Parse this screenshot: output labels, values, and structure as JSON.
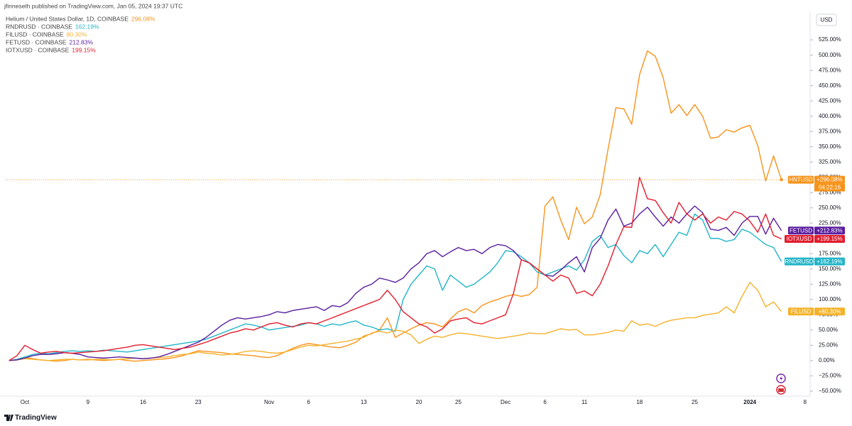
{
  "chart_data": {
    "type": "line",
    "publisher": "jfinneseth published on TradingView.com, Jan 05, 2024 19:37 UTC",
    "watermark": "TradingView",
    "y_axis_unit": "USD",
    "grid": false,
    "categories": [
      null,
      null,
      "Oct",
      null,
      null,
      null,
      null,
      null,
      null,
      null,
      "9",
      null,
      null,
      null,
      null,
      null,
      null,
      "16",
      null,
      null,
      null,
      null,
      null,
      null,
      "23",
      null,
      null,
      null,
      null,
      null,
      null,
      null,
      null,
      "Nov",
      null,
      null,
      null,
      null,
      "6",
      null,
      null,
      null,
      null,
      null,
      null,
      "13",
      null,
      null,
      null,
      null,
      null,
      null,
      "20",
      null,
      null,
      null,
      null,
      "25",
      null,
      null,
      null,
      null,
      null,
      "Dec",
      null,
      null,
      null,
      null,
      "6",
      null,
      null,
      null,
      null,
      "11",
      null,
      null,
      null,
      null,
      null,
      null,
      "18",
      null,
      null,
      null,
      null,
      null,
      null,
      "25",
      null,
      null,
      null,
      null,
      null,
      null,
      "2024",
      null,
      null,
      null,
      null,
      null,
      null,
      "8"
    ],
    "ylim": [
      -56,
      567
    ],
    "yticks": [
      {
        "value": -50,
        "label": "−50.00%"
      },
      {
        "value": -25,
        "label": "−25.00%"
      },
      {
        "value": 0,
        "label": "0.00%"
      },
      {
        "value": 25,
        "label": "25.00%"
      },
      {
        "value": 50,
        "label": "50.00%"
      },
      {
        "value": 75,
        "label": "75.00%"
      },
      {
        "value": 100,
        "label": "100.00%"
      },
      {
        "value": 125,
        "label": "125.00%"
      },
      {
        "value": 150,
        "label": "150.00%"
      },
      {
        "value": 175,
        "label": "175.00%"
      },
      {
        "value": 200,
        "label": "200.00%"
      },
      {
        "value": 225,
        "label": "225.00%"
      },
      {
        "value": 250,
        "label": "250.00%"
      },
      {
        "value": 275,
        "label": "275.00%"
      },
      {
        "value": 300,
        "label": "300.00%"
      },
      {
        "value": 325,
        "label": "325.00%"
      },
      {
        "value": 350,
        "label": "350.00%"
      },
      {
        "value": 375,
        "label": "375.00%"
      },
      {
        "value": 400,
        "label": "400.00%"
      },
      {
        "value": 425,
        "label": "425.00%"
      },
      {
        "value": 450,
        "label": "450.00%"
      },
      {
        "value": 475,
        "label": "475.00%"
      },
      {
        "value": 500,
        "label": "500.00%"
      },
      {
        "value": 525,
        "label": "525.00%"
      }
    ],
    "series": [
      {
        "name": "Helium / United States Dollar, 1D, COINBASE",
        "legend_value": "296.08%",
        "tag": "HNTUSD",
        "tag_value": "+296.08%",
        "countdown": "04:22:16",
        "color": "#f7931a",
        "values": [
          0,
          1,
          5,
          3,
          1,
          0,
          -1,
          0,
          2,
          1,
          2,
          1,
          0,
          1,
          2,
          0,
          -1,
          0,
          1,
          2,
          3,
          5,
          8,
          12,
          16,
          15,
          14,
          13,
          11,
          10,
          9,
          8,
          6,
          5,
          8,
          14,
          20,
          25,
          28,
          26,
          24,
          22,
          21,
          25,
          30,
          40,
          44,
          50,
          70,
          38,
          45,
          52,
          58,
          62,
          60,
          55,
          68,
          80,
          85,
          78,
          90,
          96,
          100,
          105,
          108,
          105,
          108,
          120,
          253,
          268,
          230,
          198,
          251,
          224,
          235,
          271,
          346,
          414,
          412,
          387,
          468,
          507,
          498,
          463,
          405,
          419,
          401,
          419,
          400,
          364,
          366,
          378,
          374,
          381,
          385,
          352,
          294,
          335,
          296.08,
          null,
          null,
          null
        ]
      },
      {
        "name": "RNDRUSD · COINBASE",
        "legend_value": "162.19%",
        "tag": "RNDRUSD",
        "tag_value": "+162.19%",
        "color": "#22b5c8",
        "values": [
          0,
          2,
          6,
          10,
          12,
          11,
          13,
          15,
          16,
          15,
          16,
          15,
          17,
          16,
          15,
          14,
          16,
          18,
          20,
          22,
          24,
          26,
          28,
          30,
          32,
          35,
          40,
          45,
          50,
          55,
          60,
          58,
          55,
          50,
          52,
          54,
          56,
          58,
          62,
          60,
          56,
          60,
          58,
          62,
          65,
          58,
          55,
          50,
          52,
          48,
          100,
          125,
          140,
          155,
          150,
          115,
          140,
          130,
          120,
          125,
          135,
          145,
          160,
          180,
          178,
          170,
          160,
          145,
          140,
          145,
          150,
          155,
          148,
          165,
          195,
          205,
          185,
          190,
          172,
          160,
          180,
          175,
          190,
          170,
          190,
          210,
          205,
          240,
          230,
          200,
          200,
          195,
          198,
          215,
          210,
          200,
          190,
          185,
          162.19,
          null,
          null,
          null
        ]
      },
      {
        "name": "FILUSD · COINBASE",
        "legend_value": "80.30%",
        "tag": "FILUSD",
        "tag_value": "+80.30%",
        "color": "#f5b22a",
        "values": [
          0,
          1,
          3,
          2,
          1,
          0,
          1,
          2,
          2,
          1,
          1,
          2,
          2,
          1,
          2,
          3,
          4,
          3,
          4,
          5,
          6,
          8,
          10,
          11,
          14,
          12,
          11,
          9,
          10,
          12,
          15,
          16,
          15,
          13,
          12,
          14,
          18,
          22,
          25,
          24,
          26,
          28,
          30,
          32,
          35,
          38,
          45,
          48,
          45,
          50,
          48,
          42,
          28,
          35,
          40,
          38,
          42,
          45,
          44,
          42,
          40,
          38,
          36,
          38,
          40,
          42,
          45,
          44,
          44,
          48,
          52,
          50,
          51,
          42,
          42,
          44,
          46,
          50,
          48,
          65,
          58,
          60,
          56,
          62,
          66,
          68,
          70,
          70,
          74,
          76,
          78,
          88,
          78,
          105,
          128,
          115,
          88,
          96,
          80.3,
          null,
          null,
          null
        ]
      },
      {
        "name": "FETUSD · COINBASE",
        "legend_value": "212.83%",
        "tag": "FETUSD",
        "tag_value": "+212.83%",
        "color": "#5a1e9e",
        "values": [
          0,
          1,
          4,
          8,
          10,
          10,
          11,
          13,
          12,
          10,
          6,
          5,
          4,
          5,
          6,
          5,
          4,
          3,
          4,
          6,
          10,
          15,
          20,
          25,
          30,
          38,
          48,
          58,
          66,
          70,
          68,
          70,
          72,
          75,
          80,
          78,
          82,
          84,
          86,
          88,
          82,
          90,
          88,
          95,
          110,
          120,
          125,
          135,
          132,
          128,
          135,
          150,
          160,
          175,
          180,
          170,
          178,
          185,
          180,
          182,
          175,
          185,
          190,
          188,
          180,
          165,
          160,
          150,
          140,
          138,
          148,
          160,
          170,
          145,
          185,
          200,
          230,
          248,
          220,
          225,
          240,
          251,
          235,
          220,
          235,
          225,
          240,
          253,
          242,
          215,
          213,
          218,
          205,
          225,
          236,
          236,
          207,
          233,
          212.83,
          null,
          null,
          null
        ]
      },
      {
        "name": "IOTXUSD · COINBASE",
        "legend_value": "199.15%",
        "tag": "IOTXUSD",
        "tag_value": "+199.15%",
        "color": "#e21d2e",
        "values": [
          0,
          8,
          25,
          18,
          12,
          14,
          15,
          13,
          12,
          13,
          14,
          15,
          16,
          18,
          20,
          22,
          25,
          26,
          24,
          22,
          20,
          18,
          20,
          22,
          26,
          30,
          35,
          40,
          45,
          48,
          52,
          50,
          55,
          60,
          62,
          58,
          55,
          60,
          62,
          60,
          65,
          70,
          75,
          80,
          85,
          90,
          95,
          100,
          115,
          100,
          80,
          70,
          60,
          55,
          45,
          52,
          65,
          68,
          70,
          62,
          60,
          65,
          70,
          75,
          110,
          165,
          160,
          150,
          140,
          130,
          140,
          135,
          110,
          114,
          106,
          125,
          155,
          190,
          219,
          218,
          300,
          265,
          262,
          242,
          225,
          259,
          240,
          230,
          240,
          225,
          235,
          230,
          244,
          240,
          228,
          210,
          240,
          205,
          199.15,
          null,
          null,
          null
        ]
      }
    ]
  }
}
